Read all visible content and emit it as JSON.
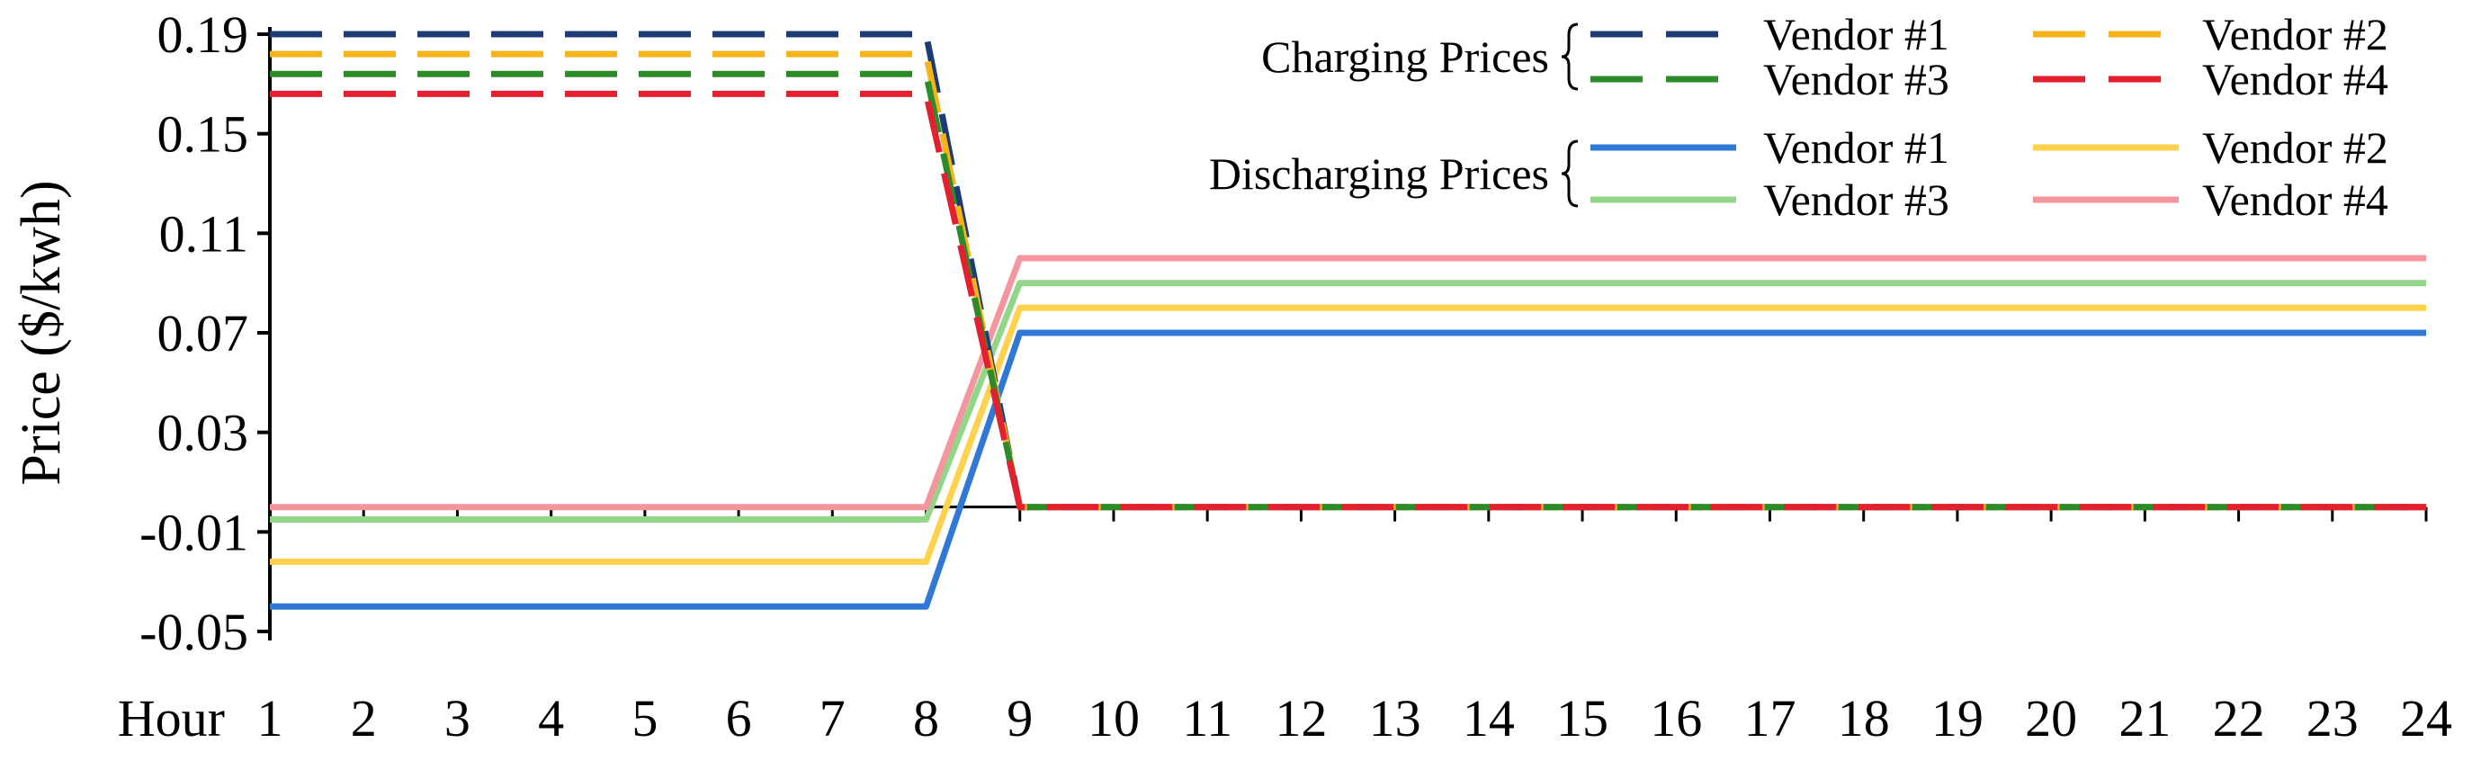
{
  "chart_data": {
    "type": "line",
    "title": "",
    "xlabel": "Hour",
    "ylabel": "Price ($/kwh)",
    "x": [
      1,
      2,
      3,
      4,
      5,
      6,
      7,
      8,
      9,
      10,
      11,
      12,
      13,
      14,
      15,
      16,
      17,
      18,
      19,
      20,
      21,
      22,
      23,
      24
    ],
    "xlim": [
      1,
      24
    ],
    "ylim": [
      -0.05,
      0.19
    ],
    "yticks": [
      -0.05,
      -0.01,
      0.03,
      0.07,
      0.11,
      0.15,
      0.19
    ],
    "ytick_labels": [
      "-0.05",
      "-0.01",
      "0.03",
      "0.07",
      "0.11",
      "0.15",
      "0.19"
    ],
    "grid": false,
    "legend_position": "top-right",
    "legend_groups": [
      {
        "label": "Charging Prices",
        "series_indices": [
          0,
          1,
          2,
          3
        ]
      },
      {
        "label": "Discharging Prices",
        "series_indices": [
          4,
          5,
          6,
          7
        ]
      }
    ],
    "series": [
      {
        "name": "Vendor #1",
        "group": "Charging Prices",
        "style": "dashed",
        "color": "#1f3b73",
        "values": [
          0.19,
          0.19,
          0.19,
          0.19,
          0.19,
          0.19,
          0.19,
          0.19,
          0,
          0,
          0,
          0,
          0,
          0,
          0,
          0,
          0,
          0,
          0,
          0,
          0,
          0,
          0,
          0
        ]
      },
      {
        "name": "Vendor #2",
        "group": "Charging Prices",
        "style": "dashed",
        "color": "#f6b31a",
        "values": [
          0.182,
          0.182,
          0.182,
          0.182,
          0.182,
          0.182,
          0.182,
          0.182,
          0,
          0,
          0,
          0,
          0,
          0,
          0,
          0,
          0,
          0,
          0,
          0,
          0,
          0,
          0,
          0
        ]
      },
      {
        "name": "Vendor #3",
        "group": "Charging Prices",
        "style": "dashed",
        "color": "#2e8b2a",
        "values": [
          0.174,
          0.174,
          0.174,
          0.174,
          0.174,
          0.174,
          0.174,
          0.174,
          0,
          0,
          0,
          0,
          0,
          0,
          0,
          0,
          0,
          0,
          0,
          0,
          0,
          0,
          0,
          0
        ]
      },
      {
        "name": "Vendor #4",
        "group": "Charging Prices",
        "style": "dashed",
        "color": "#e3202f",
        "values": [
          0.166,
          0.166,
          0.166,
          0.166,
          0.166,
          0.166,
          0.166,
          0.166,
          0,
          0,
          0,
          0,
          0,
          0,
          0,
          0,
          0,
          0,
          0,
          0,
          0,
          0,
          0,
          0
        ]
      },
      {
        "name": "Vendor #1",
        "group": "Discharging Prices",
        "style": "solid",
        "color": "#2f78d6",
        "values": [
          -0.04,
          -0.04,
          -0.04,
          -0.04,
          -0.04,
          -0.04,
          -0.04,
          -0.04,
          0.07,
          0.07,
          0.07,
          0.07,
          0.07,
          0.07,
          0.07,
          0.07,
          0.07,
          0.07,
          0.07,
          0.07,
          0.07,
          0.07,
          0.07,
          0.07
        ]
      },
      {
        "name": "Vendor #2",
        "group": "Discharging Prices",
        "style": "solid",
        "color": "#ffd24d",
        "values": [
          -0.022,
          -0.022,
          -0.022,
          -0.022,
          -0.022,
          -0.022,
          -0.022,
          -0.022,
          0.08,
          0.08,
          0.08,
          0.08,
          0.08,
          0.08,
          0.08,
          0.08,
          0.08,
          0.08,
          0.08,
          0.08,
          0.08,
          0.08,
          0.08,
          0.08
        ]
      },
      {
        "name": "Vendor #3",
        "group": "Discharging Prices",
        "style": "solid",
        "color": "#93d68a",
        "values": [
          -0.005,
          -0.005,
          -0.005,
          -0.005,
          -0.005,
          -0.005,
          -0.005,
          -0.005,
          0.09,
          0.09,
          0.09,
          0.09,
          0.09,
          0.09,
          0.09,
          0.09,
          0.09,
          0.09,
          0.09,
          0.09,
          0.09,
          0.09,
          0.09,
          0.09
        ]
      },
      {
        "name": "Vendor #4",
        "group": "Discharging Prices",
        "style": "solid",
        "color": "#f5959e",
        "values": [
          0,
          0,
          0,
          0,
          0,
          0,
          0,
          0,
          0.1,
          0.1,
          0.1,
          0.1,
          0.1,
          0.1,
          0.1,
          0.1,
          0.1,
          0.1,
          0.1,
          0.1,
          0.1,
          0.1,
          0.1,
          0.1
        ]
      }
    ]
  }
}
